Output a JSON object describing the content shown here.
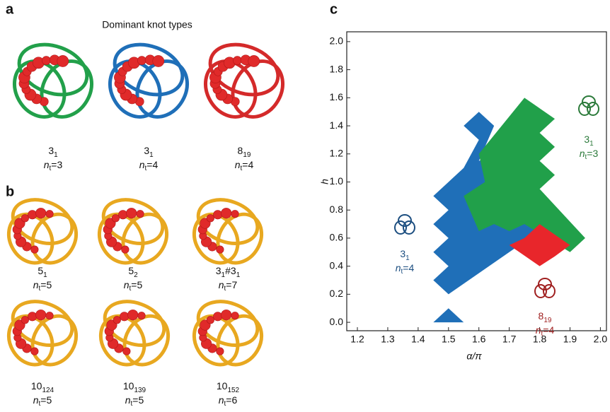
{
  "panel_a": {
    "letter": "a",
    "title": "Dominant knot types",
    "knots": [
      {
        "name": {
          "main": "3",
          "sub": "1"
        },
        "nt": {
          "main": "n",
          "sub": "t",
          "rest": "=3"
        }
      },
      {
        "name": {
          "main": "3",
          "sub": "1"
        },
        "nt": {
          "main": "n",
          "sub": "t",
          "rest": "=4"
        }
      },
      {
        "name": {
          "main": "8",
          "sub": "19"
        },
        "nt": {
          "main": "n",
          "sub": "t",
          "rest": "=4"
        }
      }
    ]
  },
  "panel_b": {
    "letter": "b",
    "knots": [
      {
        "name": {
          "main": "5",
          "sub": "1"
        },
        "nt": {
          "main": "n",
          "sub": "t",
          "rest": "=5"
        }
      },
      {
        "name": {
          "main": "5",
          "sub": "2"
        },
        "nt": {
          "main": "n",
          "sub": "t",
          "rest": "=5"
        }
      },
      {
        "name": {
          "main": "3",
          "sub": "1",
          "mid": "#3",
          "sub2": "1"
        },
        "nt": {
          "main": "n",
          "sub": "t",
          "rest": "=7"
        }
      },
      {
        "name": {
          "main": "10",
          "sub": "124"
        },
        "nt": {
          "main": "n",
          "sub": "t",
          "rest": "=5"
        }
      },
      {
        "name": {
          "main": "10",
          "sub": "139"
        },
        "nt": {
          "main": "n",
          "sub": "t",
          "rest": "=5"
        }
      },
      {
        "name": {
          "main": "10",
          "sub": "152"
        },
        "nt": {
          "main": "n",
          "sub": "t",
          "rest": "=6"
        }
      }
    ]
  },
  "chart_data": {
    "type": "polygon",
    "letter": "c",
    "x_label": "α/π",
    "y_label": "h",
    "xlim": [
      1.165,
      2.02
    ],
    "ylim": [
      -0.06,
      2.07
    ],
    "xticks": [
      1.2,
      1.3,
      1.4,
      1.5,
      1.6,
      1.7,
      1.8,
      1.9,
      {
        "value": 2,
        "label": "2.0"
      }
    ],
    "yticks": [
      {
        "value": 0,
        "label": "0.0"
      },
      0.2,
      0.4,
      0.6,
      0.8,
      {
        "value": 1,
        "label": "1.0"
      },
      1.2,
      1.4,
      1.6,
      1.8,
      {
        "value": 2,
        "label": "2.0"
      }
    ],
    "series": [
      {
        "color": "#1f6fb8",
        "x": [
          1.45,
          1.5,
          1.55
        ],
        "y": [
          0,
          0.1,
          0
        ]
      },
      {
        "color": "#1f6fb8",
        "x": [
          1.5,
          1.8,
          1.65,
          1.6,
          1.65,
          1.6,
          1.55,
          1.6,
          1.55,
          1.45,
          1.5,
          1.45,
          1.5,
          1.45,
          1.5,
          1.45
        ],
        "y": [
          0.2,
          0.65,
          1.2,
          1.15,
          1.4,
          1.5,
          1.4,
          1.3,
          1.1,
          0.9,
          0.8,
          0.7,
          0.6,
          0.5,
          0.4,
          0.3
        ]
      },
      {
        "color": "#21a04a",
        "x": [
          1.75,
          1.85,
          1.8,
          1.85,
          1.8,
          1.85,
          1.8,
          1.95,
          1.9,
          1.75,
          1.7,
          1.65,
          1.6,
          1.55,
          1.62,
          1.6
        ],
        "y": [
          1.6,
          1.45,
          1.35,
          1.25,
          1.15,
          1.05,
          0.95,
          0.6,
          0.5,
          0.7,
          0.65,
          0.7,
          0.65,
          0.9,
          1.0,
          1.2
        ]
      },
      {
        "color": "#e8262b",
        "x": [
          1.8,
          1.9,
          1.85,
          1.8,
          1.7,
          1.75
        ],
        "y": [
          0.7,
          0.55,
          0.47,
          0.4,
          0.55,
          0.6
        ]
      }
    ],
    "annotations": [
      {
        "name": {
          "main": "3",
          "sub": "1"
        },
        "nt": {
          "main": "n",
          "sub": "t",
          "rest": "=3"
        },
        "color": "#2b7a3a"
      },
      {
        "name": {
          "main": "3",
          "sub": "1"
        },
        "nt": {
          "main": "n",
          "sub": "t",
          "rest": "=4"
        },
        "color": "#1c4e80"
      },
      {
        "name": {
          "main": "8",
          "sub": "19"
        },
        "nt": {
          "main": "n",
          "sub": "t",
          "rest": "=4"
        },
        "color": "#a02020"
      }
    ]
  }
}
